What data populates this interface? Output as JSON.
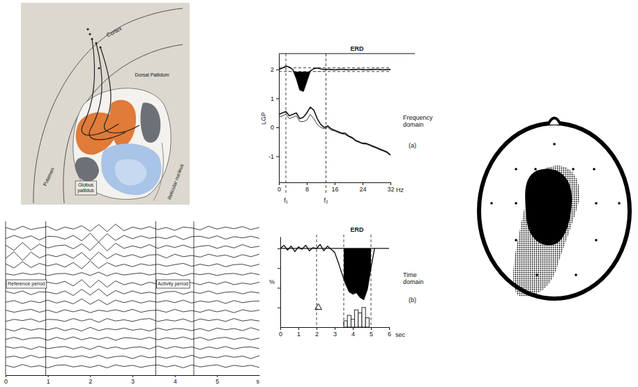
{
  "diagram": {
    "labels": [
      "Cortex",
      "Dorsal Pallidum",
      "Putamen",
      "Globus pallidus",
      "Reticular nucleus"
    ]
  },
  "chart_data": [
    {
      "type": "line",
      "x": [
        0,
        0.2,
        0.4,
        0.6,
        0.8,
        1,
        1.2,
        1.4,
        1.6,
        1.8,
        2,
        2.2,
        2.4,
        2.6,
        2.8,
        3,
        3.2,
        3.4,
        3.6,
        3.8,
        4,
        4.2,
        4.4,
        4.6,
        4.8,
        5,
        5.2,
        5.4,
        5.6,
        5.8,
        6
      ],
      "xlim": [
        0,
        6
      ],
      "xticks": [
        0,
        1,
        2,
        3,
        4,
        5
      ],
      "x_label": "s",
      "ylim": [
        -1.5,
        1.5
      ],
      "tick_labels": "x",
      "annotations": [
        "Reference period",
        "Activity period"
      ],
      "periods": [
        [
          0,
          0.95
        ],
        [
          3.55,
          4.45
        ]
      ],
      "series": [
        {
          "values": [
            0.2,
            -0.4,
            0.5,
            -0.3,
            0.1,
            0.4,
            -0.5,
            0.3,
            -0.2,
            0.6,
            -0.7,
            0.9,
            -0.8,
            1.0,
            -0.6,
            0.3,
            -0.2,
            0.4,
            -0.3,
            0.2,
            -0.5,
            0.3,
            0.1,
            -0.4,
            0.5,
            -0.2,
            0.3,
            -0.1,
            0.4,
            -0.3,
            0.2
          ]
        },
        {
          "values": [
            -0.3,
            0.5,
            -0.2,
            0.4,
            -0.6,
            0.3,
            0.2,
            -0.4,
            0.5,
            -0.8,
            1.0,
            -1.1,
            0.9,
            -0.7,
            0.5,
            -0.3,
            0.4,
            -0.2,
            0.1,
            -0.3,
            0.4,
            -0.5,
            0.2,
            0.3,
            -0.2,
            0.4,
            -0.4,
            0.2,
            -0.1,
            0.3,
            -0.2
          ]
        },
        {
          "values": [
            0.4,
            -0.9,
            1.0,
            -0.8,
            0.6,
            -0.3,
            0.2,
            0.4,
            -0.5,
            0.7,
            -0.9,
            1.1,
            -1.0,
            0.8,
            -0.4,
            0.2,
            -0.3,
            0.5,
            -0.4,
            0.3,
            -0.2,
            0.4,
            -0.3,
            0.1,
            0.3,
            -0.4,
            0.2,
            -0.3,
            0.5,
            -0.2,
            0.1
          ]
        },
        {
          "values": [
            -0.6,
            1.0,
            -1.1,
            0.9,
            -0.5,
            0.3,
            -0.2,
            0.4,
            -0.6,
            0.8,
            -1.0,
            0.9,
            -0.7,
            0.5,
            -0.2,
            0.3,
            -0.4,
            0.2,
            0.3,
            -0.5,
            0.4,
            -0.2,
            0.1,
            -0.3,
            0.4,
            -0.1,
            0.2,
            -0.4,
            0.3,
            -0.2,
            0.4
          ]
        },
        {
          "values": [
            0.3,
            -0.7,
            0.8,
            -0.6,
            0.4,
            -0.2,
            0.3,
            -0.5,
            0.6,
            -0.9,
            1.0,
            -0.8,
            0.6,
            -0.3,
            0.2,
            -0.4,
            0.3,
            -0.1,
            0.2,
            -0.3,
            0.1,
            0.4,
            -0.3,
            0.2,
            -0.2,
            0.3,
            -0.4,
            0.1,
            0.2,
            -0.3,
            0.2
          ]
        },
        {
          "values": [
            0.1,
            -0.2,
            0.3,
            -0.1,
            0.2,
            -0.3,
            0.1,
            0.2,
            -0.2,
            0.4,
            -0.3,
            0.5,
            -0.4,
            0.3,
            -0.2,
            0.1,
            0.3,
            -0.2,
            0.2,
            -0.1,
            0.3,
            -0.4,
            0.2,
            -0.1,
            0.2,
            -0.3,
            0.1,
            0.2,
            -0.2,
            0.3,
            -0.1
          ]
        },
        {
          "values": [
            -0.2,
            0.4,
            -0.3,
            0.2,
            -0.4,
            0.3,
            -0.1,
            0.5,
            -0.6,
            0.9,
            -1.0,
            0.8,
            -0.9,
            0.6,
            -0.3,
            0.2,
            -0.4,
            0.3,
            -0.2,
            0.4,
            -0.3,
            0.1,
            0.2,
            -0.3,
            0.3,
            -0.2,
            0.4,
            -0.3,
            0.1,
            -0.2,
            0.3
          ]
        },
        {
          "values": [
            0.3,
            -0.2,
            0.4,
            -0.5,
            0.2,
            0.1,
            -0.3,
            0.4,
            -0.7,
            0.8,
            -0.6,
            0.9,
            -0.8,
            0.5,
            -0.3,
            0.4,
            -0.2,
            0.1,
            -0.3,
            0.2,
            0.3,
            -0.4,
            0.2,
            -0.2,
            0.4,
            -0.3,
            0.1,
            0.2,
            -0.3,
            0.2,
            -0.1
          ]
        },
        {
          "values": [
            -0.1,
            0.3,
            -0.4,
            0.2,
            -0.2,
            0.4,
            -0.3,
            0.2,
            -0.5,
            0.7,
            -0.6,
            0.5,
            -0.7,
            0.4,
            -0.2,
            0.3,
            -0.3,
            0.2,
            -0.1,
            0.3,
            -0.2,
            0.4,
            -0.3,
            0.2,
            -0.1,
            0.3,
            -0.4,
            0.3,
            -0.2,
            0.1,
            0.2
          ]
        },
        {
          "values": [
            0.2,
            -0.3,
            0.1,
            0.4,
            -0.3,
            0.2,
            -0.4,
            0.3,
            -0.2,
            0.3,
            -0.4,
            0.2,
            -0.1,
            0.3,
            -0.2,
            0.4,
            -0.3,
            0.1,
            0.2,
            -0.3,
            0.4,
            -0.2,
            0.1,
            -0.3,
            0.3,
            -0.2,
            0.2,
            -0.4,
            0.3,
            -0.1,
            0.2
          ]
        },
        {
          "values": [
            -0.3,
            0.2,
            -0.1,
            0.3,
            -0.4,
            0.2,
            0.1,
            -0.3,
            0.4,
            -0.2,
            0.3,
            -0.5,
            0.4,
            -0.2,
            0.1,
            -0.3,
            0.2,
            0.4,
            -0.3,
            0.1,
            -0.2,
            0.3,
            -0.4,
            0.3,
            -0.1,
            0.2,
            -0.3,
            0.4,
            -0.2,
            0.1,
            -0.2
          ]
        },
        {
          "values": [
            0.1,
            -0.4,
            0.3,
            -0.2,
            0.2,
            -0.1,
            0.4,
            -0.3,
            0.2,
            -0.4,
            0.5,
            -0.3,
            0.2,
            -0.1,
            0.3,
            -0.2,
            0.1,
            -0.4,
            0.3,
            -0.2,
            0.2,
            0.1,
            -0.3,
            0.2,
            -0.4,
            0.3,
            -0.1,
            0.2,
            -0.3,
            0.4,
            -0.2
          ]
        },
        {
          "values": [
            -0.2,
            0.3,
            -0.3,
            0.1,
            0.2,
            -0.4,
            0.3,
            -0.2,
            0.4,
            -0.3,
            0.2,
            -0.2,
            0.3,
            -0.4,
            0.2,
            0.1,
            -0.2,
            0.3,
            -0.3,
            0.2,
            -0.1,
            0.4,
            -0.2,
            0.3,
            -0.4,
            0.1,
            0.3,
            -0.2,
            0.2,
            -0.3,
            0.1
          ]
        },
        {
          "values": [
            0.3,
            -0.1,
            0.2,
            -0.4,
            0.3,
            -0.2,
            0.1,
            0.3,
            -0.3,
            0.2,
            -0.4,
            0.4,
            -0.2,
            0.2,
            -0.3,
            0.1,
            0.2,
            -0.3,
            0.4,
            -0.2,
            0.3,
            -0.1,
            0.2,
            -0.4,
            0.2,
            -0.2,
            0.3,
            -0.3,
            0.1,
            0.2,
            -0.2
          ]
        },
        {
          "values": [
            -0.1,
            0.2,
            -0.3,
            0.4,
            -0.2,
            0.1,
            -0.3,
            0.2,
            -0.1,
            0.3,
            -0.2,
            0.4,
            -0.3,
            0.1,
            0.2,
            -0.4,
            0.3,
            -0.2,
            0.1,
            -0.3,
            0.2,
            -0.2,
            0.4,
            -0.3,
            0.1,
            -0.2,
            0.3,
            -0.1,
            0.2,
            -0.4,
            0.3
          ]
        },
        {
          "values": [
            0.2,
            -0.3,
            0.4,
            -0.2,
            0.1,
            -0.4,
            0.2,
            0.3,
            -0.2,
            0.1,
            -0.3,
            0.2,
            -0.4,
            0.3,
            -0.1,
            0.2,
            -0.3,
            0.1,
            0.3,
            -0.2,
            0.2,
            -0.4,
            0.3,
            -0.2,
            0.1,
            0.3,
            -0.3,
            0.2,
            -0.1,
            0.2,
            -0.3
          ]
        }
      ]
    },
    {
      "type": "line",
      "title": "ERD",
      "y_label": "LGP",
      "x_label": "Hz",
      "annotations": [
        "Frequency domain",
        "(a)"
      ],
      "x": [
        0,
        1,
        2,
        3,
        4,
        5,
        6,
        7,
        8,
        9,
        10,
        11,
        12,
        13,
        14,
        15,
        16,
        17,
        18,
        19,
        20,
        21,
        22,
        23,
        24,
        25,
        26,
        27,
        28,
        29,
        30,
        31,
        32
      ],
      "xlim": [
        0,
        32
      ],
      "xticks": [
        0,
        8,
        16,
        24,
        32
      ],
      "ylim": [
        -1.9,
        2.55
      ],
      "yticks": [
        -1,
        0,
        1,
        2
      ],
      "thresholds": [
        1.93,
        2.06
      ],
      "bands": {
        "values": [
          2,
          13.5
        ],
        "labels": [
          "f₁",
          "f₂"
        ]
      },
      "series": [
        {
          "type": "area",
          "values": [
            2.0,
            2.05,
            2.12,
            2.08,
            2.0,
            1.7,
            1.3,
            1.25,
            1.6,
            1.95,
            2.03,
            2.05,
            2.02,
            2.0,
            2.01,
            2.0,
            1.99,
            2.0,
            2.01,
            2.0,
            1.99,
            2.0,
            2.0,
            2.01,
            2.0,
            1.99,
            2.0,
            2.0,
            2.01,
            2.0,
            1.99,
            2.0,
            2.0
          ]
        },
        {
          "values": [
            0.45,
            0.5,
            0.55,
            0.4,
            0.45,
            0.5,
            0.3,
            0.35,
            0.5,
            0.7,
            0.6,
            0.3,
            0.1,
            0.0,
            0.05,
            -0.05,
            -0.1,
            -0.15,
            -0.2,
            -0.2,
            -0.3,
            -0.35,
            -0.45,
            -0.5,
            -0.55,
            -0.55,
            -0.6,
            -0.65,
            -0.7,
            -0.75,
            -0.8,
            -0.85,
            -0.95
          ]
        },
        {
          "values": [
            0.35,
            0.4,
            0.45,
            0.3,
            0.35,
            0.4,
            0.2,
            0.2,
            0.25,
            0.45,
            0.3,
            0.1,
            0.0,
            -0.05,
            0.0,
            -0.1,
            -0.12,
            -0.18,
            -0.22,
            -0.25,
            -0.32,
            -0.38,
            -0.47,
            -0.52,
            -0.57,
            -0.58,
            -0.62,
            -0.68,
            -0.72,
            -0.78,
            -0.82,
            -0.88,
            -0.97
          ]
        }
      ]
    },
    {
      "type": "line",
      "title": "ERD",
      "y_label": "%",
      "x_label": "sec",
      "annotations": [
        "Time domain",
        "(b)"
      ],
      "x": [
        0,
        0.2,
        0.4,
        0.6,
        0.8,
        1,
        1.2,
        1.4,
        1.6,
        1.8,
        2,
        2.2,
        2.4,
        2.6,
        2.8,
        3,
        3.2,
        3.4,
        3.6,
        3.8,
        4,
        4.2,
        4.4,
        4.6,
        4.8,
        5,
        5.2
      ],
      "xlim": [
        0,
        6
      ],
      "xticks": [
        0,
        1,
        2,
        3,
        4,
        5,
        6
      ],
      "ylim": [
        0,
        115
      ],
      "yticks": [
        25,
        50,
        75,
        100
      ],
      "tick_labels": "x",
      "baseline": 100,
      "bands": {
        "values": [
          2,
          3.5,
          5
        ]
      },
      "stimulus": {
        "x": 2.1,
        "y": 25
      },
      "histogram": {
        "bins": [
          3.5,
          3.7,
          3.9,
          4.1,
          4.3,
          4.5,
          4.7,
          4.9
        ],
        "counts": [
          8,
          15,
          10,
          22,
          18,
          25,
          12
        ]
      },
      "series": [
        {
          "type": "area",
          "values": [
            100,
            104,
            98,
            103,
            96,
            102,
            99,
            104,
            97,
            101,
            100,
            105,
            97,
            103,
            99,
            95,
            82,
            68,
            55,
            45,
            42,
            44,
            38,
            35,
            48,
            75,
            100
          ]
        }
      ]
    }
  ]
}
